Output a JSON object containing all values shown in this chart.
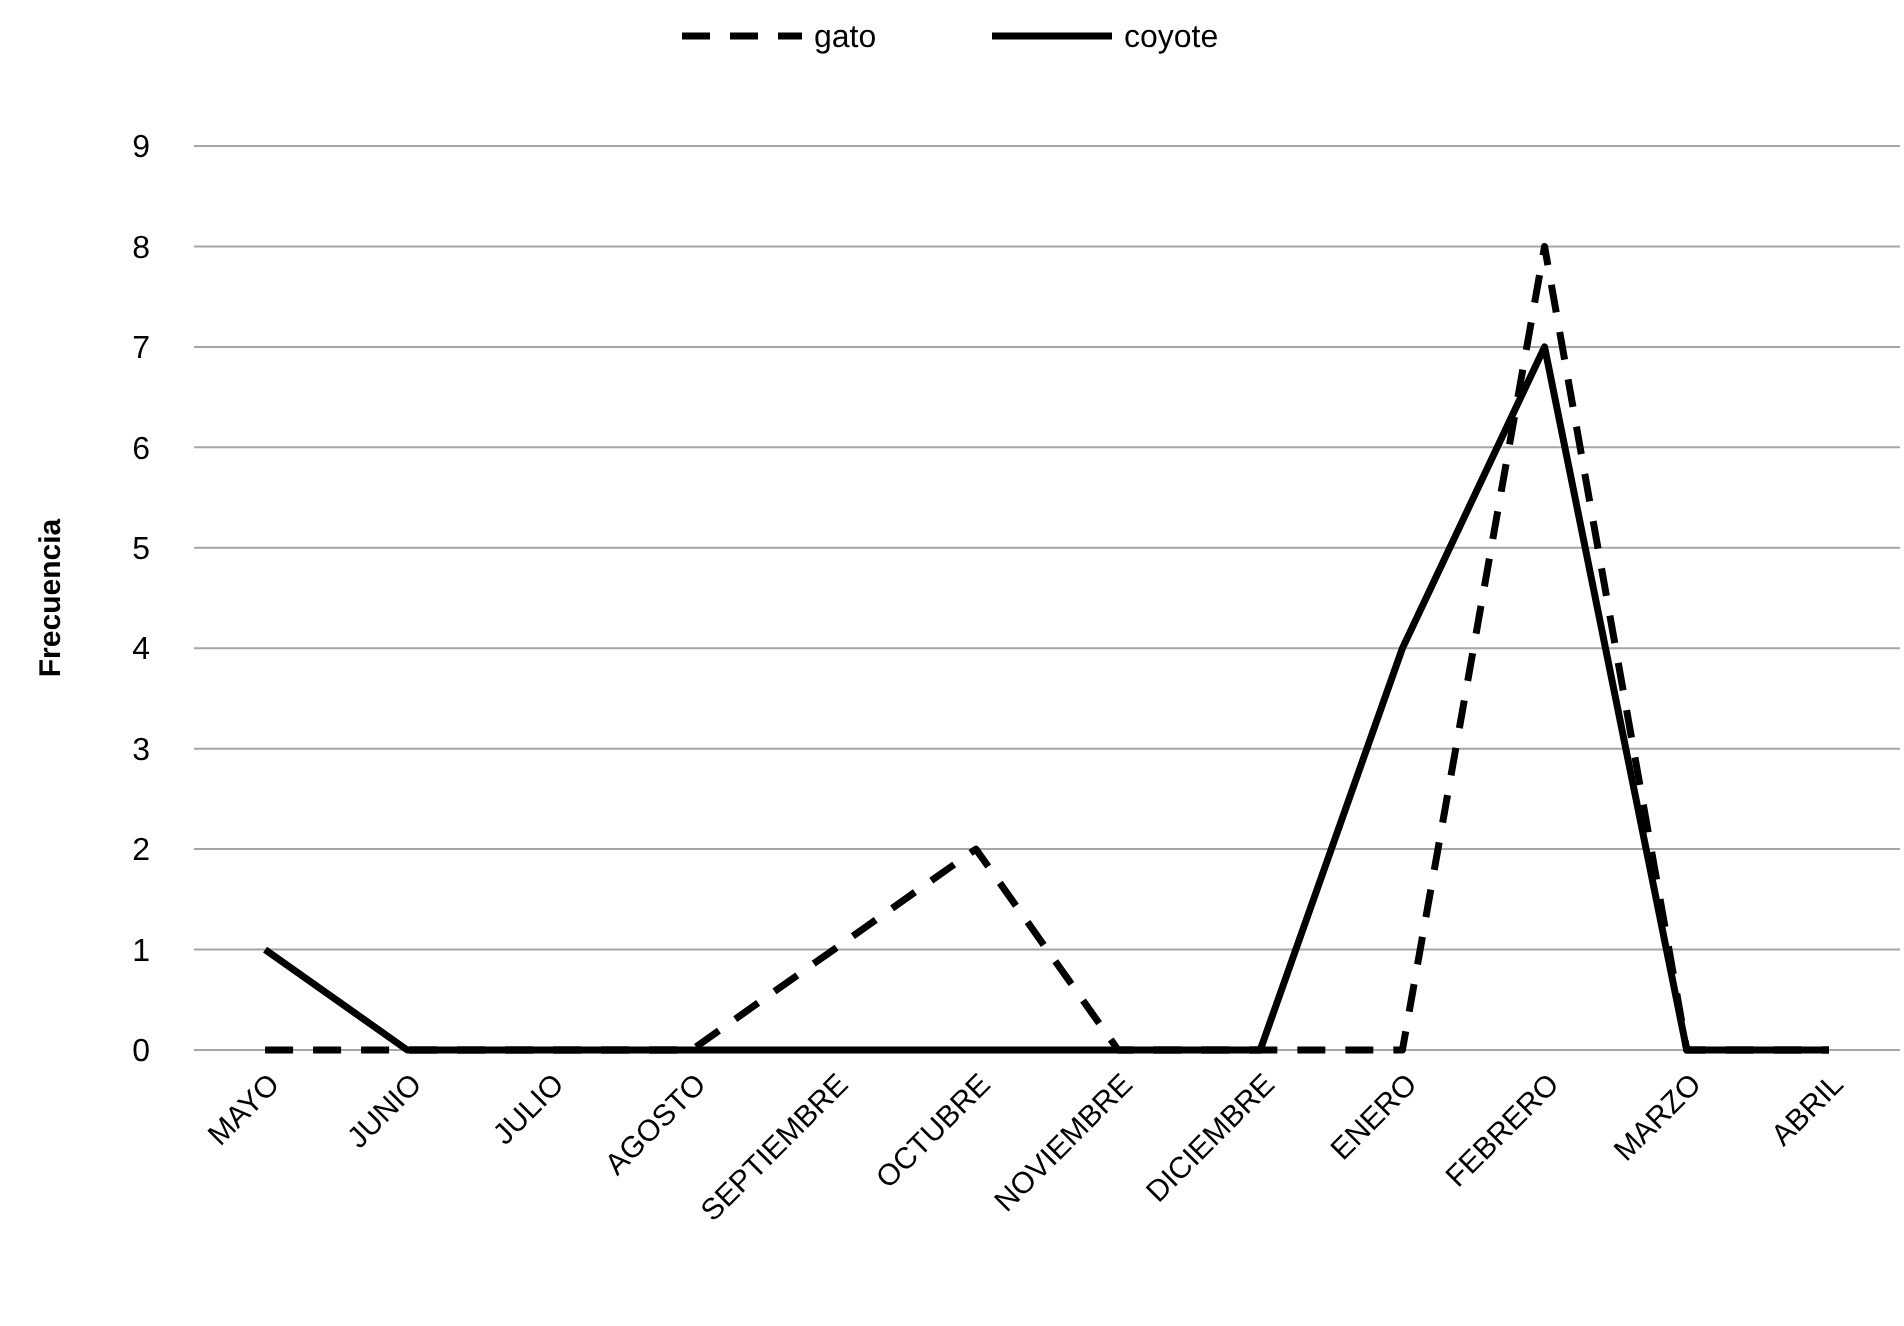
{
  "chart_data": {
    "type": "line",
    "ylabel": "Frecuencia",
    "categories": [
      "MAYO",
      "JUNIO",
      "JULIO",
      "AGOSTO",
      "SEPTIEMBRE",
      "OCTUBRE",
      "NOVIEMBRE",
      "DICIEMBRE",
      "ENERO",
      "FEBRERO",
      "MARZO",
      "ABRIL"
    ],
    "series": [
      {
        "name": "gato",
        "color": "#000000",
        "line_style": "dashed",
        "values": [
          0,
          0,
          0,
          0,
          1,
          2,
          0,
          0,
          0,
          8,
          0,
          0
        ]
      },
      {
        "name": "coyote",
        "color": "#000000",
        "line_style": "solid",
        "values": [
          1,
          0,
          0,
          0,
          0,
          0,
          0,
          0,
          4,
          7,
          0,
          0
        ]
      }
    ],
    "ylim": [
      0,
      9
    ],
    "yticks": [
      0,
      1,
      2,
      3,
      4,
      5,
      6,
      7,
      8,
      9
    ],
    "grid": "y",
    "legend": "top",
    "marker": "none"
  }
}
